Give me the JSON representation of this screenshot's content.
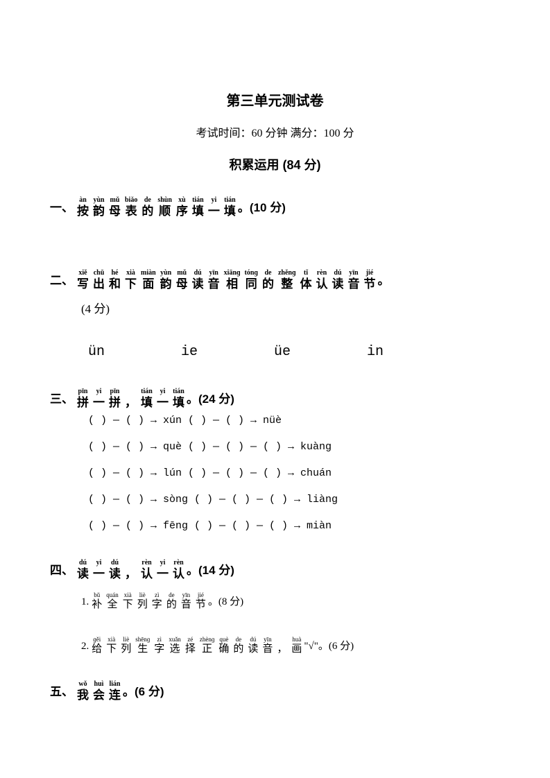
{
  "title": "第三单元测试卷",
  "subtitle": "考试时间：60 分钟 满分：100 分",
  "section_title": "积累运用 (84 分)",
  "q1": {
    "num": "一、",
    "chars": [
      {
        "p": "àn",
        "h": "按"
      },
      {
        "p": "yùn",
        "h": "韵"
      },
      {
        "p": "mǔ",
        "h": "母"
      },
      {
        "p": "biǎo",
        "h": "表"
      },
      {
        "p": "de",
        "h": "的"
      },
      {
        "p": "shùn",
        "h": "顺"
      },
      {
        "p": "xù",
        "h": "序"
      },
      {
        "p": "tián",
        "h": "填"
      },
      {
        "p": "yi",
        "h": "一"
      },
      {
        "p": "tián",
        "h": "填"
      }
    ],
    "suffix": "。(10 分)"
  },
  "q2": {
    "num": "二、",
    "chars": [
      {
        "p": "xiě",
        "h": "写"
      },
      {
        "p": "chū",
        "h": "出"
      },
      {
        "p": "hé",
        "h": "和"
      },
      {
        "p": "xià",
        "h": "下"
      },
      {
        "p": "miàn",
        "h": "面"
      },
      {
        "p": "yùn",
        "h": "韵"
      },
      {
        "p": "mǔ",
        "h": "母"
      },
      {
        "p": "dú",
        "h": "读"
      },
      {
        "p": "yīn",
        "h": "音"
      },
      {
        "p": "xiānɡ",
        "h": "相"
      },
      {
        "p": "tónɡ",
        "h": "同"
      },
      {
        "p": "de",
        "h": "的"
      },
      {
        "p": "zhěnɡ",
        "h": "整"
      },
      {
        "p": "tǐ",
        "h": "体"
      },
      {
        "p": "rèn",
        "h": "认"
      },
      {
        "p": "dú",
        "h": "读"
      },
      {
        "p": "yīn",
        "h": "音"
      },
      {
        "p": "jié",
        "h": "节"
      }
    ],
    "suffix": "。",
    "score": "(4 分)",
    "syllables": [
      "ün",
      "ie",
      "üe",
      "in"
    ]
  },
  "q3": {
    "num": "三、",
    "chars": [
      {
        "p": "pīn",
        "h": "拼"
      },
      {
        "p": "yi",
        "h": "一"
      },
      {
        "p": "pīn",
        "h": "拼"
      },
      {
        "p": "",
        "h": "，"
      },
      {
        "p": "tián",
        "h": "填"
      },
      {
        "p": "yi",
        "h": "一"
      },
      {
        "p": "tián",
        "h": "填"
      }
    ],
    "suffix": "。(24 分)",
    "rows": [
      "(     ) — (     ) → xún   (     ) — (     ) → nüè",
      "(     ) — (     ) → què   (     ) — (     ) — (     ) → kuànɡ",
      "(     ) — (     ) → lún   (     ) — (     ) — (     ) → chuán",
      "(     ) — (     ) → sònɡ  (     ) — (     ) — (     ) → liànɡ",
      "(     ) — (     ) → fēnɡ  (     ) — (     ) — (     ) → miàn"
    ]
  },
  "q4": {
    "num": "四、",
    "chars": [
      {
        "p": "dú",
        "h": "读"
      },
      {
        "p": "yi",
        "h": "一"
      },
      {
        "p": "dú",
        "h": "读"
      },
      {
        "p": "",
        "h": "，"
      },
      {
        "p": "rèn",
        "h": "认"
      },
      {
        "p": "yi",
        "h": "一"
      },
      {
        "p": "rèn",
        "h": "认"
      }
    ],
    "suffix": "。(14 分)",
    "sub1": {
      "num": "1.",
      "chars": [
        {
          "p": "bǔ",
          "h": "补"
        },
        {
          "p": "quán",
          "h": "全"
        },
        {
          "p": "xià",
          "h": "下"
        },
        {
          "p": "liè",
          "h": "列"
        },
        {
          "p": "zì",
          "h": "字"
        },
        {
          "p": "de",
          "h": "的"
        },
        {
          "p": "yīn",
          "h": "音"
        },
        {
          "p": "jié",
          "h": "节"
        }
      ],
      "suffix": "。(8 分)"
    },
    "sub2": {
      "num": "2.",
      "chars": [
        {
          "p": "ɡěi",
          "h": "给"
        },
        {
          "p": "xià",
          "h": "下"
        },
        {
          "p": "liè",
          "h": "列"
        },
        {
          "p": "shēnɡ",
          "h": "生"
        },
        {
          "p": "zì",
          "h": "字"
        },
        {
          "p": "xuǎn",
          "h": "选"
        },
        {
          "p": "zé",
          "h": "择"
        },
        {
          "p": "zhènɡ",
          "h": "正"
        },
        {
          "p": "què",
          "h": "确"
        },
        {
          "p": "de",
          "h": "的"
        },
        {
          "p": "dú",
          "h": "读"
        },
        {
          "p": "yīn",
          "h": "音"
        },
        {
          "p": "",
          "h": "，"
        },
        {
          "p": "huà",
          "h": "画"
        }
      ],
      "suffix": " \"√\"。(6 分)"
    }
  },
  "q5": {
    "num": "五、",
    "chars": [
      {
        "p": "wǒ",
        "h": "我"
      },
      {
        "p": "huì",
        "h": "会"
      },
      {
        "p": "lián",
        "h": "连"
      }
    ],
    "suffix": "。(6 分)"
  }
}
